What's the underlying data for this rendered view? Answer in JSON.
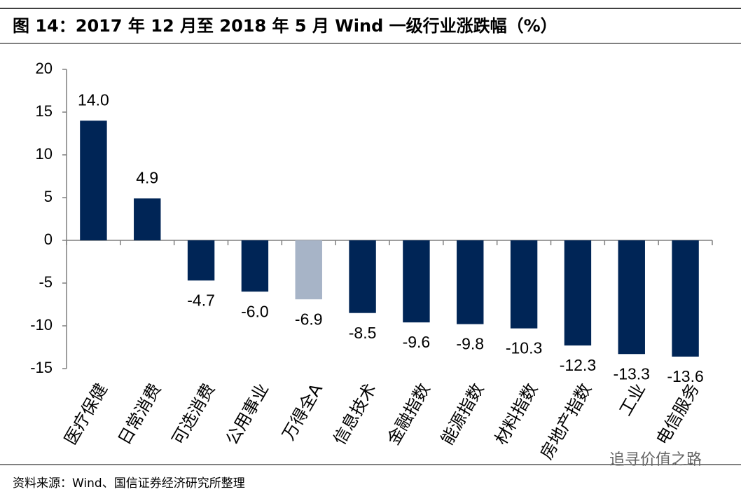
{
  "chart_data": {
    "type": "bar",
    "title": "图 14：2017 年 12 月至 2018 年 5 月 Wind 一级行业涨跌幅（%）",
    "categories": [
      "医疗保健",
      "日常消费",
      "可选消费",
      "公用事业",
      "万得全A",
      "信息技术",
      "金融指数",
      "能源指数",
      "材料指数",
      "房地产指数",
      "工业",
      "电信服务"
    ],
    "values": [
      14.0,
      4.9,
      -4.7,
      -6.0,
      -6.9,
      -8.5,
      -9.6,
      -9.8,
      -10.3,
      -12.3,
      -13.3,
      -13.6
    ],
    "value_labels": [
      "14.0",
      "4.9",
      "-4.7",
      "-6.0",
      "-6.9",
      "-8.5",
      "-9.6",
      "-9.8",
      "-10.3",
      "-12.3",
      "-13.3",
      "-13.6"
    ],
    "colors": [
      "#002556",
      "#002556",
      "#002556",
      "#002556",
      "#a7b4c7",
      "#002556",
      "#002556",
      "#002556",
      "#002556",
      "#002556",
      "#002556",
      "#002556"
    ],
    "ylim": [
      -15,
      20
    ],
    "yticks": [
      -15,
      -10,
      -5,
      0,
      5,
      10,
      15,
      20
    ],
    "grid": false,
    "source": "资料来源：Wind、国信证券经济研究所整理",
    "watermark": "追寻价值之路"
  }
}
